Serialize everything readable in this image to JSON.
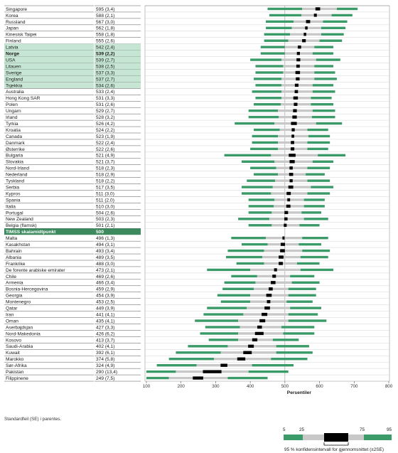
{
  "chart_data": {
    "type": "percentile-bar",
    "xlabel": "Persentiler",
    "xlim": [
      100,
      800
    ],
    "xticks": [
      100,
      200,
      300,
      400,
      500,
      600,
      700,
      800
    ],
    "centerpoint": {
      "label": "TIMSS skalamidtpunkt",
      "value": "500",
      "x": 500
    },
    "rows": [
      {
        "country": "Singapore",
        "score": "595 (3,4)",
        "mean": 595,
        "p5": 450,
        "p25": 550,
        "p75": 650,
        "p95": 710,
        "hl": false,
        "bold": false
      },
      {
        "country": "Korea",
        "score": "588 (2,1)",
        "mean": 588,
        "p5": 455,
        "p25": 548,
        "p75": 635,
        "p95": 695,
        "hl": false,
        "bold": false
      },
      {
        "country": "Russland",
        "score": "567 (3,0)",
        "mean": 567,
        "p5": 445,
        "p25": 525,
        "p75": 610,
        "p95": 680,
        "hl": false,
        "bold": false
      },
      {
        "country": "Japan",
        "score": "562 (1,8)",
        "mean": 562,
        "p5": 445,
        "p25": 520,
        "p75": 605,
        "p95": 675,
        "hl": false,
        "bold": false
      },
      {
        "country": "Kinesisk Taipei",
        "score": "558 (1,8)",
        "mean": 558,
        "p5": 440,
        "p25": 515,
        "p75": 605,
        "p95": 670,
        "hl": false,
        "bold": false
      },
      {
        "country": "Finland",
        "score": "555 (2,6)",
        "mean": 555,
        "p5": 440,
        "p25": 510,
        "p75": 600,
        "p95": 665,
        "hl": false,
        "bold": false
      },
      {
        "country": "Latvia",
        "score": "542 (2,4)",
        "mean": 542,
        "p5": 430,
        "p25": 500,
        "p75": 585,
        "p95": 640,
        "hl": true,
        "bold": false
      },
      {
        "country": "Norge",
        "score": "539 (2,2)",
        "mean": 539,
        "p5": 430,
        "p25": 500,
        "p75": 580,
        "p95": 640,
        "hl": true,
        "bold": true
      },
      {
        "country": "USA",
        "score": "539 (2,7)",
        "mean": 539,
        "p5": 400,
        "p25": 490,
        "p75": 590,
        "p95": 660,
        "hl": true,
        "bold": false
      },
      {
        "country": "Litauen",
        "score": "538 (2,5)",
        "mean": 538,
        "p5": 415,
        "p25": 495,
        "p75": 585,
        "p95": 640,
        "hl": true,
        "bold": false
      },
      {
        "country": "Sverige",
        "score": "537 (3,3)",
        "mean": 537,
        "p5": 415,
        "p25": 495,
        "p75": 585,
        "p95": 645,
        "hl": true,
        "bold": false
      },
      {
        "country": "England",
        "score": "537 (2,7)",
        "mean": 537,
        "p5": 410,
        "p25": 490,
        "p75": 585,
        "p95": 650,
        "hl": true,
        "bold": false
      },
      {
        "country": "Tsjekkia",
        "score": "534 (2,6)",
        "mean": 534,
        "p5": 415,
        "p25": 490,
        "p75": 580,
        "p95": 640,
        "hl": true,
        "bold": false
      },
      {
        "country": "Australia",
        "score": "533 (2,4)",
        "mean": 533,
        "p5": 405,
        "p25": 490,
        "p75": 580,
        "p95": 645,
        "hl": false,
        "bold": false
      },
      {
        "country": "Hong Kong SAR",
        "score": "531 (3,3)",
        "mean": 531,
        "p5": 415,
        "p25": 490,
        "p75": 575,
        "p95": 635,
        "hl": false,
        "bold": false
      },
      {
        "country": "Polen",
        "score": "531 (2,6)",
        "mean": 531,
        "p5": 410,
        "p25": 488,
        "p75": 575,
        "p95": 640,
        "hl": false,
        "bold": false
      },
      {
        "country": "Ungarn",
        "score": "529 (2,7)",
        "mean": 529,
        "p5": 395,
        "p25": 480,
        "p75": 580,
        "p95": 645,
        "hl": false,
        "bold": false
      },
      {
        "country": "Irland",
        "score": "528 (3,2)",
        "mean": 528,
        "p5": 395,
        "p25": 482,
        "p75": 578,
        "p95": 645,
        "hl": false,
        "bold": false
      },
      {
        "country": "Tyrkia",
        "score": "526 (4,2)",
        "mean": 526,
        "p5": 355,
        "p25": 470,
        "p75": 590,
        "p95": 665,
        "hl": false,
        "bold": false
      },
      {
        "country": "Kroatia",
        "score": "524 (2,2)",
        "mean": 524,
        "p5": 410,
        "p25": 485,
        "p75": 565,
        "p95": 625,
        "hl": false,
        "bold": false
      },
      {
        "country": "Canada",
        "score": "523 (1,9)",
        "mean": 523,
        "p5": 405,
        "p25": 480,
        "p75": 568,
        "p95": 630,
        "hl": false,
        "bold": false
      },
      {
        "country": "Danmark",
        "score": "522 (2,4)",
        "mean": 522,
        "p5": 405,
        "p25": 480,
        "p75": 565,
        "p95": 630,
        "hl": false,
        "bold": false
      },
      {
        "country": "Østerrike",
        "score": "522 (2,6)",
        "mean": 522,
        "p5": 400,
        "p25": 480,
        "p75": 565,
        "p95": 625,
        "hl": false,
        "bold": false
      },
      {
        "country": "Bulgaria",
        "score": "521 (4,9)",
        "mean": 521,
        "p5": 325,
        "p25": 460,
        "p75": 595,
        "p95": 675,
        "hl": false,
        "bold": false
      },
      {
        "country": "Slovakia",
        "score": "521 (3,7)",
        "mean": 521,
        "p5": 375,
        "p25": 470,
        "p75": 580,
        "p95": 640,
        "hl": false,
        "bold": false
      },
      {
        "country": "Nord-Irland",
        "score": "518 (2,3)",
        "mean": 518,
        "p5": 400,
        "p25": 475,
        "p75": 565,
        "p95": 630,
        "hl": false,
        "bold": false
      },
      {
        "country": "Nederland",
        "score": "518 (2,9)",
        "mean": 518,
        "p5": 410,
        "p25": 480,
        "p75": 560,
        "p95": 615,
        "hl": false,
        "bold": false
      },
      {
        "country": "Tyskland",
        "score": "518 (2,2)",
        "mean": 518,
        "p5": 390,
        "p25": 472,
        "p75": 565,
        "p95": 630,
        "hl": false,
        "bold": false
      },
      {
        "country": "Serbia",
        "score": "517 (3,5)",
        "mean": 517,
        "p5": 375,
        "p25": 465,
        "p75": 575,
        "p95": 640,
        "hl": false,
        "bold": false
      },
      {
        "country": "Kypros",
        "score": "511 (3,0)",
        "mean": 511,
        "p5": 375,
        "p25": 460,
        "p75": 565,
        "p95": 630,
        "hl": false,
        "bold": false
      },
      {
        "country": "Spania",
        "score": "511 (2,0)",
        "mean": 511,
        "p5": 395,
        "p25": 470,
        "p75": 555,
        "p95": 615,
        "hl": false,
        "bold": false
      },
      {
        "country": "Italia",
        "score": "510 (3,0)",
        "mean": 510,
        "p5": 395,
        "p25": 468,
        "p75": 555,
        "p95": 615,
        "hl": false,
        "bold": false
      },
      {
        "country": "Portugal",
        "score": "504 (2,6)",
        "mean": 504,
        "p5": 395,
        "p25": 462,
        "p75": 548,
        "p95": 605,
        "hl": false,
        "bold": false
      },
      {
        "country": "New Zealand",
        "score": "503 (2,3)",
        "mean": 503,
        "p5": 365,
        "p25": 455,
        "p75": 555,
        "p95": 625,
        "hl": false,
        "bold": false
      },
      {
        "country": "Belgia (flamsk)",
        "score": "501 (2,1)",
        "mean": 501,
        "p5": 395,
        "p25": 462,
        "p75": 542,
        "p95": 600,
        "hl": false,
        "bold": false
      },
      {
        "centerpoint": true
      },
      {
        "country": "Malta",
        "score": "496 (1,3)",
        "mean": 496,
        "p5": 345,
        "p25": 445,
        "p75": 550,
        "p95": 625,
        "hl": false,
        "bold": false
      },
      {
        "country": "Kasakhstan",
        "score": "494 (3,1)",
        "mean": 494,
        "p5": 375,
        "p25": 450,
        "p75": 540,
        "p95": 605,
        "hl": false,
        "bold": false
      },
      {
        "country": "Bahrain",
        "score": "493 (3,4)",
        "mean": 493,
        "p5": 335,
        "p25": 440,
        "p75": 550,
        "p95": 630,
        "hl": false,
        "bold": false
      },
      {
        "country": "Albania",
        "score": "489 (3,5)",
        "mean": 489,
        "p5": 330,
        "p25": 435,
        "p75": 545,
        "p95": 625,
        "hl": false,
        "bold": false
      },
      {
        "country": "Frankrike",
        "score": "488 (3,0)",
        "mean": 488,
        "p5": 360,
        "p25": 440,
        "p75": 535,
        "p95": 600,
        "hl": false,
        "bold": false
      },
      {
        "country": "De forente arabiske emirater",
        "score": "473 (2,1)",
        "mean": 473,
        "p5": 275,
        "p25": 400,
        "p75": 545,
        "p95": 640,
        "hl": false,
        "bold": false
      },
      {
        "country": "Chile",
        "score": "469 (2,6)",
        "mean": 469,
        "p5": 345,
        "p25": 420,
        "p75": 515,
        "p95": 585,
        "hl": false,
        "bold": false
      },
      {
        "country": "Armenia",
        "score": "466 (3,4)",
        "mean": 466,
        "p5": 325,
        "p25": 415,
        "p75": 520,
        "p95": 600,
        "hl": false,
        "bold": false
      },
      {
        "country": "Bosnia-Hercegovina",
        "score": "459 (2,9)",
        "mean": 459,
        "p5": 320,
        "p25": 410,
        "p75": 510,
        "p95": 590,
        "hl": false,
        "bold": false
      },
      {
        "country": "Georgia",
        "score": "454 (3,9)",
        "mean": 454,
        "p5": 305,
        "p25": 400,
        "p75": 510,
        "p95": 590,
        "hl": false,
        "bold": false
      },
      {
        "country": "Montenegro",
        "score": "453 (2,5)",
        "mean": 453,
        "p5": 315,
        "p25": 400,
        "p75": 505,
        "p95": 580,
        "hl": false,
        "bold": false
      },
      {
        "country": "Qatar",
        "score": "449 (3,9)",
        "mean": 449,
        "p5": 275,
        "p25": 390,
        "p75": 515,
        "p95": 605,
        "hl": false,
        "bold": false
      },
      {
        "country": "Iran",
        "score": "441 (4,1)",
        "mean": 441,
        "p5": 265,
        "p25": 380,
        "p75": 510,
        "p95": 595,
        "hl": false,
        "bold": false
      },
      {
        "country": "Oman",
        "score": "435 (4,1)",
        "mean": 435,
        "p5": 240,
        "p25": 365,
        "p75": 510,
        "p95": 620,
        "hl": false,
        "bold": false
      },
      {
        "country": "Aserbajdsjan",
        "score": "427 (3,3)",
        "mean": 427,
        "p5": 270,
        "p25": 370,
        "p75": 490,
        "p95": 585,
        "hl": false,
        "bold": false
      },
      {
        "country": "Nord-Makedonia",
        "score": "426 (6,2)",
        "mean": 426,
        "p5": 255,
        "p25": 365,
        "p75": 495,
        "p95": 585,
        "hl": false,
        "bold": false
      },
      {
        "country": "Kosovo",
        "score": "413 (3,7)",
        "mean": 413,
        "p5": 280,
        "p25": 365,
        "p75": 465,
        "p95": 540,
        "hl": false,
        "bold": false
      },
      {
        "country": "Saudi-Arabia",
        "score": "402 (4,1)",
        "mean": 402,
        "p5": 220,
        "p25": 335,
        "p75": 475,
        "p95": 570,
        "hl": false,
        "bold": false
      },
      {
        "country": "Kuwait",
        "score": "392 (6,1)",
        "mean": 392,
        "p5": 185,
        "p25": 315,
        "p75": 475,
        "p95": 580,
        "hl": false,
        "bold": false
      },
      {
        "country": "Marokko",
        "score": "374 (5,8)",
        "mean": 374,
        "p5": 165,
        "p25": 295,
        "p75": 460,
        "p95": 565,
        "hl": false,
        "bold": false
      },
      {
        "country": "Sør-Afrika",
        "score": "324 (4,9)",
        "mean": 324,
        "p5": 130,
        "p25": 245,
        "p75": 405,
        "p95": 525,
        "hl": false,
        "bold": false
      },
      {
        "country": "Pakistan",
        "score": "290 (13,4)",
        "mean": 290,
        "p5": 100,
        "p25": 185,
        "p75": 395,
        "p95": 510,
        "hl": false,
        "bold": false
      },
      {
        "country": "Filippinene",
        "score": "249 (7,5)",
        "mean": 249,
        "p5": 100,
        "p25": 165,
        "p75": 335,
        "p95": 450,
        "hl": false,
        "bold": false
      }
    ]
  },
  "footnote": "Standardfeil (SE) i parentes.",
  "legend": {
    "p5": "5",
    "p25": "25",
    "p75": "75",
    "p95": "95",
    "ci_label": "95 % konfidensintervall for gjennomsnittet (±2SE)"
  },
  "colors": {
    "green": "#3a9a68",
    "highlight": "#c6e6d3",
    "gray": "#c8c8c8",
    "mean": "#000000",
    "center_row": "#3c8a5e"
  }
}
